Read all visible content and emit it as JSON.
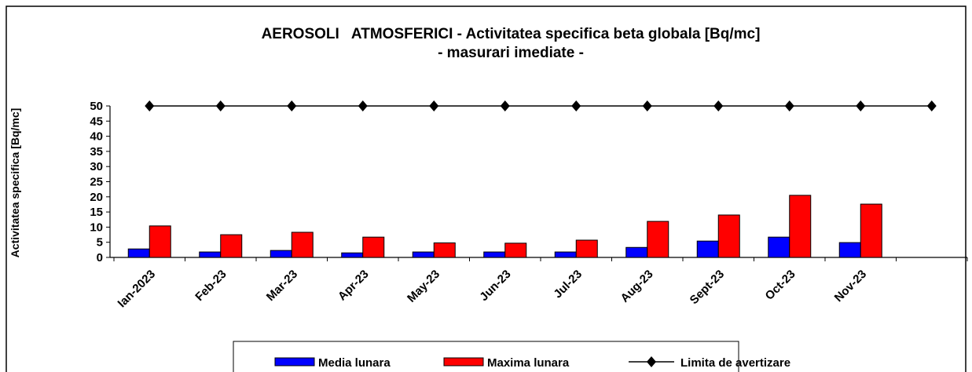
{
  "chart_data": {
    "type": "bar",
    "title": [
      "AEROSOLI   ATMOSFERICI - Activitatea specifica beta globala [Bq/mc]",
      "- masurari imediate -"
    ],
    "y_label": "Activitatea specifica [Bq/mc]",
    "categories": [
      "Ian-2023",
      "Feb-23",
      "Mar-23",
      "Apr-23",
      "May-23",
      "Jun-23",
      "Jul-23",
      "Aug-23",
      "Sept-23",
      "Oct-23",
      "Nov-23",
      null
    ],
    "series": [
      {
        "name": "Media lunara",
        "color": "#0000ff",
        "kind": "bar",
        "values": [
          2.8,
          1.8,
          2.3,
          1.5,
          1.8,
          1.8,
          1.8,
          3.3,
          5.4,
          6.7,
          4.9,
          null
        ]
      },
      {
        "name": "Maxima lunara",
        "color": "#ff0000",
        "kind": "bar",
        "values": [
          10.4,
          7.5,
          8.3,
          6.7,
          4.8,
          4.7,
          5.7,
          11.9,
          14,
          20.5,
          17.6,
          null
        ]
      },
      {
        "name": "Limita de avertizare",
        "color": "#000000",
        "kind": "line",
        "values": [
          50,
          50,
          50,
          50,
          50,
          50,
          50,
          50,
          50,
          50,
          50,
          50
        ]
      }
    ],
    "ylim": [
      0,
      50
    ],
    "yticks": [
      0,
      5,
      10,
      15,
      20,
      25,
      30,
      35,
      40,
      45,
      50
    ],
    "grid": false,
    "legend": "bottom"
  }
}
